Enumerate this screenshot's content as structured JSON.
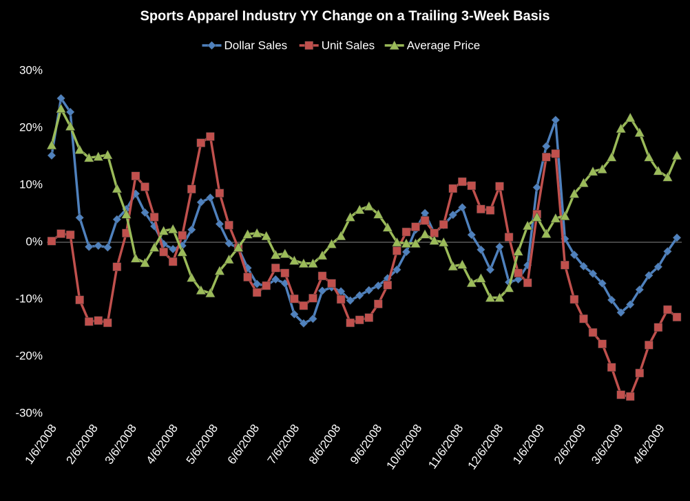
{
  "chart_data": {
    "type": "line",
    "title": "Sports Apparel Industry YY Change on a Trailing 3-Week Basis",
    "x": [
      "1/6/2008",
      "1/13/2008",
      "1/20/2008",
      "1/27/2008",
      "2/3/2008",
      "2/10/2008",
      "2/17/2008",
      "2/24/2008",
      "3/2/2008",
      "3/9/2008",
      "3/16/2008",
      "3/23/2008",
      "3/30/2008",
      "4/6/2008",
      "4/13/2008",
      "4/20/2008",
      "4/27/2008",
      "5/4/2008",
      "5/11/2008",
      "5/18/2008",
      "5/25/2008",
      "6/1/2008",
      "6/8/2008",
      "6/15/2008",
      "6/22/2008",
      "6/29/2008",
      "7/6/2008",
      "7/13/2008",
      "7/20/2008",
      "7/27/2008",
      "8/3/2008",
      "8/10/2008",
      "8/17/2008",
      "8/24/2008",
      "8/31/2008",
      "9/7/2008",
      "9/14/2008",
      "9/21/2008",
      "9/28/2008",
      "10/5/2008",
      "10/12/2008",
      "10/19/2008",
      "10/26/2008",
      "11/2/2008",
      "11/9/2008",
      "11/16/2008",
      "11/23/2008",
      "11/30/2008",
      "12/7/2008",
      "12/14/2008",
      "12/21/2008",
      "12/28/2008",
      "1/4/2009",
      "1/11/2009",
      "1/18/2009",
      "1/25/2009",
      "2/1/2009",
      "2/8/2009",
      "2/15/2009",
      "2/22/2009",
      "3/1/2009",
      "3/8/2009",
      "3/15/2009",
      "3/22/2009",
      "3/29/2009",
      "4/5/2009",
      "4/12/2009",
      "4/19/2009"
    ],
    "series": [
      {
        "name": "Dollar Sales",
        "color": "#4f81bd",
        "marker": "diamond",
        "values": [
          15.2,
          25.2,
          22.8,
          4.3,
          -0.8,
          -0.6,
          -0.9,
          4,
          5.8,
          8.5,
          5.2,
          2.8,
          -0.3,
          -1.2,
          -0.6,
          2.2,
          7,
          7.8,
          3.2,
          -0.2,
          -1,
          -4.5,
          -7.3,
          -7.6,
          -6.5,
          -7.2,
          -12.6,
          -14.2,
          -13.4,
          -8.5,
          -7.9,
          -8.6,
          -10.2,
          -9.3,
          -8.4,
          -7.6,
          -6.3,
          -4.8,
          -1.7,
          2.2,
          5.1,
          1.6,
          3,
          4.8,
          6.1,
          1.3,
          -1.3,
          -4.8,
          -0.8,
          -7,
          -6.5,
          -4,
          9.6,
          16.8,
          21.4,
          0.6,
          -2.2,
          -4.2,
          -5.5,
          -7.2,
          -10.1,
          -12.3,
          -10.9,
          -8.3,
          -5.8,
          -4.3,
          -1.6,
          0.8
        ]
      },
      {
        "name": "Unit Sales",
        "color": "#c0504d",
        "marker": "square",
        "values": [
          0.2,
          1.5,
          1.3,
          -10.1,
          -13.9,
          -13.7,
          -14.1,
          -4.3,
          1.6,
          11.6,
          9.7,
          4.4,
          -1.7,
          -3.4,
          1.2,
          9.3,
          17.4,
          18.5,
          8.6,
          3,
          -1,
          -6.1,
          -8.8,
          -7.6,
          -4.5,
          -5.4,
          -9.9,
          -11.1,
          -9.8,
          -5.9,
          -7.2,
          -10,
          -14.1,
          -13.6,
          -13.2,
          -10.8,
          -7.5,
          -1.5,
          1.8,
          2.7,
          3.8,
          1.6,
          3.1,
          9.4,
          10.6,
          9.9,
          5.8,
          5.6,
          9.8,
          0.9,
          -5.4,
          -7.1,
          4.9,
          14.9,
          15.5,
          -4,
          -10,
          -13.4,
          -15.8,
          -17.8,
          -21.9,
          -26.7,
          -27,
          -22.9,
          -18,
          -14.9,
          -11.8,
          -13.1
        ]
      },
      {
        "name": "Average Price",
        "color": "#9bbb59",
        "marker": "triangle",
        "values": [
          17,
          23.4,
          20.3,
          16.2,
          14.8,
          15,
          15.3,
          9.4,
          4.9,
          -2.8,
          -3.6,
          -0.9,
          2,
          2.3,
          -1.7,
          -6.2,
          -8.4,
          -8.9,
          -5,
          -3,
          -0.9,
          1.4,
          1.6,
          1.1,
          -2.2,
          -2,
          -3.2,
          -3.7,
          -3.7,
          -2.3,
          -0.3,
          1.1,
          4.4,
          5.7,
          6.3,
          4.9,
          2.6,
          0,
          -0.2,
          -0.2,
          1.4,
          0.3,
          0,
          -4.2,
          -3.9,
          -7.1,
          -6.3,
          -9.7,
          -9.7,
          -8,
          -1.6,
          2.9,
          4.4,
          1.5,
          4.2,
          4.6,
          8.5,
          10.4,
          12.4,
          12.8,
          14.9,
          19.9,
          21.8,
          19.2,
          14.9,
          12.5,
          11.4,
          15.2
        ]
      }
    ],
    "xticks": [
      "1/6/2008",
      "2/6/2008",
      "3/6/2008",
      "4/6/2008",
      "5/6/2008",
      "6/6/2008",
      "7/6/2008",
      "8/6/2008",
      "9/6/2008",
      "10/6/2008",
      "11/6/2008",
      "12/6/2008",
      "1/6/2009",
      "2/6/2009",
      "3/6/2009",
      "4/6/2009"
    ],
    "ylim": [
      -30,
      30
    ],
    "yticks": [
      {
        "value": -30,
        "label": "-30%"
      },
      {
        "value": -20,
        "label": "-20%"
      },
      {
        "value": -10,
        "label": "-10%"
      },
      {
        "value": 0,
        "label": "0%"
      },
      {
        "value": 10,
        "label": "10%"
      },
      {
        "value": 20,
        "label": "20%"
      },
      {
        "value": 30,
        "label": "30%"
      }
    ],
    "legend": "top",
    "background": "#000000"
  }
}
